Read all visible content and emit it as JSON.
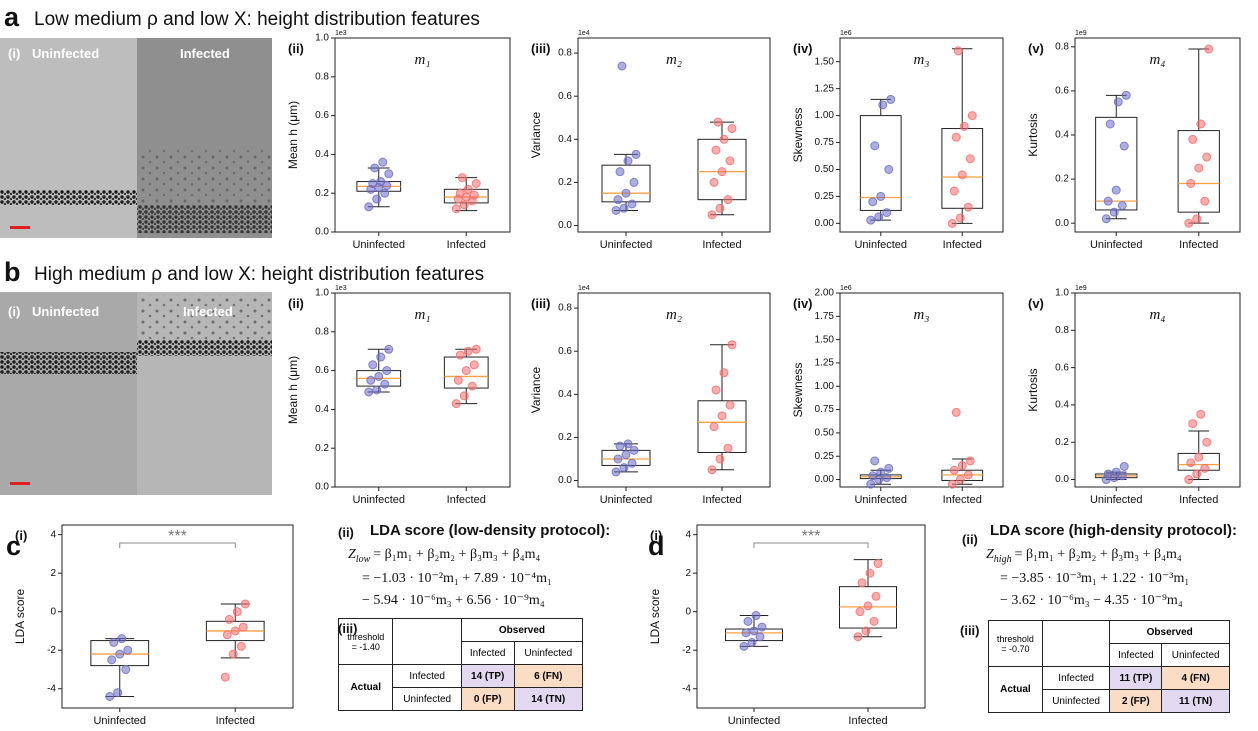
{
  "panels": [
    {
      "letter": "a",
      "title": "Low medium ρ and low X: height distribution features",
      "image": {
        "label": "(i)",
        "left": "Uninfected",
        "right": "Infected"
      }
    },
    {
      "letter": "b",
      "title": "High medium ρ and low X: height distribution features",
      "image": {
        "label": "(i)",
        "left": "Uninfected",
        "right": "Infected"
      }
    }
  ],
  "chart_data": [
    {
      "type": "box",
      "label": "(ii)",
      "title": "m₁",
      "scale": "1e3",
      "ylabel": "Mean h (μm)",
      "categories": [
        "Uninfected",
        "Infected"
      ],
      "ylim": [
        0,
        1
      ],
      "yticks": [
        {
          "value": 0,
          "label": "0.0"
        },
        0.2,
        0.4,
        0.6,
        0.8,
        {
          "value": 1,
          "label": "1.0"
        }
      ],
      "median_color": "#ffa040",
      "boxes": [
        {
          "color": "#6a6ac4",
          "whislo": 0.13,
          "q1": 0.21,
          "med": 0.235,
          "q3": 0.26,
          "whishi": 0.33,
          "points": [
            0.13,
            0.17,
            0.2,
            0.22,
            0.23,
            0.24,
            0.25,
            0.26,
            0.3,
            0.33,
            0.36
          ]
        },
        {
          "color": "#f26b6b",
          "whislo": 0.11,
          "q1": 0.15,
          "med": 0.18,
          "q3": 0.22,
          "whishi": 0.28,
          "points": [
            0.12,
            0.14,
            0.16,
            0.17,
            0.18,
            0.19,
            0.2,
            0.22,
            0.25,
            0.28
          ]
        }
      ]
    },
    {
      "type": "box",
      "label": "(iii)",
      "title": "m₂",
      "scale": "1e4",
      "ylabel": "Variance",
      "categories": [
        "Uninfected",
        "Infected"
      ],
      "ylim": [
        -0.03,
        0.87
      ],
      "yticks": [
        {
          "value": 0,
          "label": "0.0"
        },
        0.2,
        0.4,
        0.6,
        0.8
      ],
      "median_color": "#ffa040",
      "boxes": [
        {
          "color": "#6a6ac4",
          "whislo": 0.07,
          "q1": 0.11,
          "med": 0.15,
          "q3": 0.28,
          "whishi": 0.33,
          "points": [
            0.07,
            0.08,
            0.1,
            0.12,
            0.15,
            0.2,
            0.25,
            0.3,
            0.33,
            0.74
          ]
        },
        {
          "color": "#f26b6b",
          "whislo": 0.05,
          "q1": 0.12,
          "med": 0.25,
          "q3": 0.4,
          "whishi": 0.48,
          "points": [
            0.05,
            0.08,
            0.12,
            0.2,
            0.25,
            0.3,
            0.35,
            0.4,
            0.45,
            0.48
          ]
        }
      ]
    },
    {
      "type": "box",
      "label": "(iv)",
      "title": "m₃",
      "scale": "1e6",
      "ylabel": "Skewness",
      "categories": [
        "Uninfected",
        "Infected"
      ],
      "ylim": [
        -0.08,
        1.72
      ],
      "yticks": [
        {
          "value": 0,
          "label": "0.00"
        },
        0.25,
        {
          "value": 0.5,
          "label": "0.50"
        },
        0.75,
        {
          "value": 1,
          "label": "1.00"
        },
        1.25,
        {
          "value": 1.5,
          "label": "1.50"
        }
      ],
      "median_color": "#ffa040",
      "boxes": [
        {
          "color": "#6a6ac4",
          "whislo": 0.03,
          "q1": 0.12,
          "med": 0.24,
          "q3": 1.0,
          "whishi": 1.15,
          "points": [
            0.03,
            0.06,
            0.1,
            0.2,
            0.25,
            0.5,
            0.72,
            1.1,
            1.15
          ]
        },
        {
          "color": "#f26b6b",
          "whislo": 0,
          "q1": 0.14,
          "med": 0.43,
          "q3": 0.88,
          "whishi": 1.62,
          "points": [
            0,
            0.05,
            0.15,
            0.3,
            0.45,
            0.6,
            0.8,
            0.9,
            1.0,
            1.6
          ]
        }
      ]
    },
    {
      "type": "box",
      "label": "(v)",
      "title": "m₄",
      "scale": "1e9",
      "ylabel": "Kurtosis",
      "categories": [
        "Uninfected",
        "Infected"
      ],
      "ylim": [
        -0.04,
        0.84
      ],
      "yticks": [
        {
          "value": 0,
          "label": "0.0"
        },
        0.2,
        0.4,
        0.6,
        0.8
      ],
      "median_color": "#ffa040",
      "boxes": [
        {
          "color": "#6a6ac4",
          "whislo": 0.02,
          "q1": 0.06,
          "med": 0.1,
          "q3": 0.48,
          "whishi": 0.58,
          "points": [
            0.02,
            0.05,
            0.08,
            0.1,
            0.15,
            0.35,
            0.45,
            0.55,
            0.58
          ]
        },
        {
          "color": "#f26b6b",
          "whislo": 0,
          "q1": 0.05,
          "med": 0.18,
          "q3": 0.42,
          "whishi": 0.79,
          "points": [
            0,
            0.02,
            0.1,
            0.18,
            0.25,
            0.3,
            0.38,
            0.45,
            0.79
          ]
        }
      ]
    },
    {
      "type": "box",
      "label": "(ii)",
      "title": "m₁",
      "scale": "1e3",
      "ylabel": "Mean h (μm)",
      "categories": [
        "Uninfected",
        "Infected"
      ],
      "ylim": [
        0,
        1
      ],
      "yticks": [
        {
          "value": 0,
          "label": "0.0"
        },
        0.2,
        0.4,
        0.6,
        0.8,
        {
          "value": 1,
          "label": "1.0"
        }
      ],
      "median_color": "#ffa040",
      "boxes": [
        {
          "color": "#6a6ac4",
          "whislo": 0.49,
          "q1": 0.52,
          "med": 0.56,
          "q3": 0.6,
          "whishi": 0.71,
          "points": [
            0.49,
            0.5,
            0.53,
            0.55,
            0.57,
            0.6,
            0.63,
            0.67,
            0.71
          ]
        },
        {
          "color": "#f26b6b",
          "whislo": 0.43,
          "q1": 0.51,
          "med": 0.57,
          "q3": 0.67,
          "whishi": 0.71,
          "points": [
            0.43,
            0.47,
            0.52,
            0.55,
            0.6,
            0.63,
            0.68,
            0.7,
            0.71
          ]
        }
      ]
    },
    {
      "type": "box",
      "label": "(iii)",
      "title": "m₂",
      "scale": "1e4",
      "ylabel": "Variance",
      "categories": [
        "Uninfected",
        "Infected"
      ],
      "ylim": [
        -0.03,
        0.87
      ],
      "yticks": [
        {
          "value": 0,
          "label": "0.0"
        },
        0.2,
        0.4,
        0.6,
        0.8
      ],
      "median_color": "#ffa040",
      "boxes": [
        {
          "color": "#6a6ac4",
          "whislo": 0.04,
          "q1": 0.07,
          "med": 0.1,
          "q3": 0.14,
          "whishi": 0.17,
          "points": [
            0.04,
            0.06,
            0.08,
            0.1,
            0.12,
            0.14,
            0.16,
            0.17
          ]
        },
        {
          "color": "#f26b6b",
          "whislo": 0.05,
          "q1": 0.13,
          "med": 0.27,
          "q3": 0.37,
          "whishi": 0.63,
          "points": [
            0.05,
            0.1,
            0.15,
            0.25,
            0.3,
            0.35,
            0.42,
            0.5,
            0.63
          ]
        }
      ]
    },
    {
      "type": "box",
      "label": "(iv)",
      "title": "m₃",
      "scale": "1e6",
      "ylabel": "Skewness",
      "categories": [
        "Uninfected",
        "Infected"
      ],
      "ylim": [
        -0.08,
        2
      ],
      "yticks": [
        {
          "value": 0,
          "label": "0.00"
        },
        0.25,
        {
          "value": 0.5,
          "label": "0.50"
        },
        0.75,
        {
          "value": 1,
          "label": "1.00"
        },
        1.25,
        {
          "value": 1.5,
          "label": "1.50"
        },
        1.75,
        {
          "value": 2,
          "label": "2.00"
        }
      ],
      "median_color": "#ffa040",
      "boxes": [
        {
          "color": "#6a6ac4",
          "whislo": -0.05,
          "q1": 0.01,
          "med": 0.03,
          "q3": 0.05,
          "whishi": 0.1,
          "points": [
            -0.05,
            0,
            0.02,
            0.04,
            0.08,
            0.12,
            0.2
          ]
        },
        {
          "color": "#f26b6b",
          "whislo": -0.05,
          "q1": -0.01,
          "med": 0.05,
          "q3": 0.1,
          "whishi": 0.22,
          "points": [
            -0.05,
            0,
            0.05,
            0.1,
            0.15,
            0.2,
            0.72
          ]
        }
      ]
    },
    {
      "type": "box",
      "label": "(v)",
      "title": "m₄",
      "scale": "1e9",
      "ylabel": "Kurtosis",
      "categories": [
        "Uninfected",
        "Infected"
      ],
      "ylim": [
        -0.04,
        1
      ],
      "yticks": [
        {
          "value": 0,
          "label": "0.0"
        },
        0.2,
        0.4,
        0.6,
        0.8,
        {
          "value": 1,
          "label": "1.0"
        }
      ],
      "median_color": "#ffa040",
      "boxes": [
        {
          "color": "#6a6ac4",
          "whislo": 0,
          "q1": 0.01,
          "med": 0.02,
          "q3": 0.03,
          "whishi": 0.04,
          "points": [
            0,
            0.01,
            0.02,
            0.03,
            0.04,
            0.07
          ]
        },
        {
          "color": "#f26b6b",
          "whislo": 0,
          "q1": 0.05,
          "med": 0.08,
          "q3": 0.14,
          "whishi": 0.26,
          "points": [
            0,
            0.03,
            0.06,
            0.09,
            0.12,
            0.2,
            0.3,
            0.35
          ]
        }
      ]
    },
    {
      "type": "box",
      "label": "(i)",
      "ylabel": "LDA score",
      "significance": "***",
      "categories": [
        "Uninfected",
        "Infected"
      ],
      "ylim": [
        -5,
        4.5
      ],
      "yticks": [
        -4,
        -2,
        0,
        2,
        4
      ],
      "median_color": "#ffa040",
      "boxes": [
        {
          "color": "#6a6ac4",
          "whislo": -4.4,
          "q1": -2.8,
          "med": -2.2,
          "q3": -1.5,
          "whishi": -1.4,
          "points": [
            -4.4,
            -4.2,
            -3,
            -2.5,
            -2.2,
            -2,
            -1.6,
            -1.4
          ]
        },
        {
          "color": "#f26b6b",
          "whislo": -2.4,
          "q1": -1.5,
          "med": -1,
          "q3": -0.5,
          "whishi": 0.4,
          "points": [
            -3.4,
            -2.2,
            -1.8,
            -1.2,
            -1,
            -0.8,
            -0.4,
            0,
            0.4
          ]
        }
      ]
    },
    {
      "type": "box",
      "label": "(i)",
      "ylabel": "LDA score",
      "significance": "***",
      "categories": [
        "Uninfected",
        "Infected"
      ],
      "ylim": [
        -5,
        4.5
      ],
      "yticks": [
        -4,
        -2,
        0,
        2,
        4
      ],
      "median_color": "#ffa040",
      "boxes": [
        {
          "color": "#6a6ac4",
          "whislo": -1.8,
          "q1": -1.5,
          "med": -1.1,
          "q3": -0.9,
          "whishi": -0.2,
          "points": [
            -1.8,
            -1.6,
            -1.3,
            -1.1,
            -1,
            -0.8,
            -0.5,
            -0.2
          ]
        },
        {
          "color": "#f26b6b",
          "whislo": -1.3,
          "q1": -0.85,
          "med": 0.25,
          "q3": 1.3,
          "whishi": 2.7,
          "points": [
            -1.3,
            -1,
            -0.5,
            0,
            0.3,
            0.8,
            1.5,
            2,
            2.5
          ]
        }
      ]
    }
  ],
  "lda": [
    {
      "letter": "c",
      "eq_label": "(ii)",
      "heading": "LDA score (low-density protocol):",
      "eq": {
        "lhs": "Z",
        "sub": "low",
        "rhs": "= β₁m₁ + β₂m₂ + β₃m₃ + β₄m₄",
        "lines": [
          "= −1.03 · 10⁻²m₁ + 7.89 · 10⁻⁴m₁",
          "− 5.94 · 10⁻⁶m₃ + 6.56 · 10⁻⁹m₄"
        ]
      },
      "table_label": "(iii)",
      "table": {
        "threshold_label": "threshold",
        "threshold": "= -1.40",
        "observed": "Observed",
        "actual": "Actual",
        "columns": [
          "Infected",
          "Uninfected"
        ],
        "rows": [
          {
            "name": "Infected",
            "cells": [
              "14 (TP)",
              "6 (FN)"
            ]
          },
          {
            "name": "Uninfected",
            "cells": [
              "0 (FP)",
              "14 (TN)"
            ]
          }
        ]
      }
    },
    {
      "letter": "d",
      "eq_label": "(ii)",
      "heading": "LDA score (high-density protocol):",
      "eq": {
        "lhs": "Z",
        "sub": "high",
        "rhs": "= β₁m₁ + β₂m₂ + β₃m₃ + β₄m₄",
        "lines": [
          "= −3.85 · 10⁻³m₁ + 1.22 · 10⁻³m₁",
          "− 3.62 · 10⁻⁶m₃ − 4.35 · 10⁻⁹m₄"
        ]
      },
      "table_label": "(iii)",
      "table": {
        "threshold_label": "threshold",
        "threshold": "= -0.70",
        "observed": "Observed",
        "actual": "Actual",
        "columns": [
          "Infected",
          "Uninfected"
        ],
        "rows": [
          {
            "name": "Infected",
            "cells": [
              "11 (TP)",
              "4 (FN)"
            ]
          },
          {
            "name": "Uninfected",
            "cells": [
              "2 (FP)",
              "11 (TN)"
            ]
          }
        ]
      }
    }
  ]
}
